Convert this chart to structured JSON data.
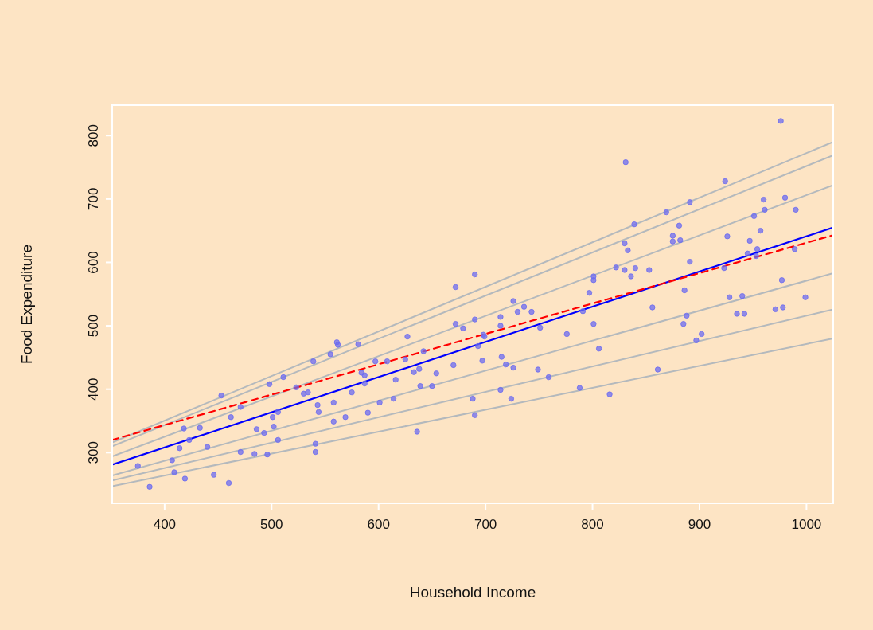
{
  "chart_data": {
    "type": "scatter",
    "xlabel": "Household Income",
    "ylabel": "Food Expenditure",
    "xlim": [
      351,
      1025
    ],
    "ylim": [
      220,
      848
    ],
    "xticks": [
      400,
      500,
      600,
      700,
      800,
      900,
      1000
    ],
    "yticks": [
      300,
      400,
      500,
      600,
      700,
      800
    ],
    "grid": false,
    "series": [
      {
        "color": "#6b6bf0",
        "marker": "circle",
        "x": [
          386,
          375,
          407,
          409,
          419,
          414,
          418,
          423,
          433,
          440,
          446,
          460,
          453,
          462,
          471,
          471,
          484,
          486,
          493,
          496,
          498,
          501,
          502,
          506,
          506,
          511,
          523,
          530,
          534,
          539,
          541,
          541,
          543,
          544,
          555,
          558,
          558,
          561,
          562,
          569,
          575,
          581,
          584,
          587,
          587,
          590,
          597,
          601,
          608,
          614,
          616,
          625,
          627,
          633,
          636,
          638,
          639,
          642,
          650,
          654,
          670,
          672,
          679,
          688,
          690,
          690,
          672,
          690,
          726,
          736,
          730,
          743,
          714,
          714,
          698,
          699,
          693,
          751,
          776,
          791,
          801,
          806,
          856,
          697,
          715,
          719,
          726,
          749,
          759,
          714,
          724,
          788,
          816,
          861,
          885,
          888,
          897,
          902,
          928,
          935,
          942,
          940,
          971,
          978,
          999,
          797,
          801,
          801,
          822,
          830,
          836,
          840,
          853,
          831,
          830,
          833,
          839,
          869,
          875,
          881,
          875,
          882,
          891,
          891,
          886,
          924,
          926,
          947,
          951,
          957,
          960,
          961,
          945,
          954,
          953,
          923,
          976,
          980,
          990,
          989,
          977
        ],
        "values": [
          246,
          279,
          288,
          269,
          259,
          307,
          338,
          320,
          339,
          309,
          265,
          252,
          390,
          356,
          372,
          301,
          298,
          337,
          331,
          297,
          408,
          356,
          341,
          320,
          364,
          419,
          403,
          393,
          395,
          444,
          314,
          301,
          375,
          364,
          455,
          379,
          349,
          474,
          470,
          356,
          395,
          471,
          426,
          422,
          409,
          363,
          444,
          379,
          444,
          385,
          415,
          447,
          483,
          427,
          333,
          432,
          405,
          460,
          405,
          425,
          438,
          503,
          496,
          385,
          359,
          510,
          561,
          581,
          539,
          530,
          522,
          522,
          514,
          500,
          486,
          483,
          468,
          497,
          487,
          523,
          503,
          464,
          529,
          445,
          451,
          439,
          434,
          431,
          419,
          399,
          385,
          402,
          392,
          431,
          503,
          516,
          477,
          487,
          545,
          519,
          519,
          547,
          526,
          529,
          545,
          552,
          578,
          572,
          592,
          588,
          578,
          591,
          588,
          758,
          630,
          619,
          660,
          679,
          642,
          658,
          633,
          635,
          695,
          601,
          556,
          728,
          641,
          634,
          673,
          650,
          699,
          683,
          614,
          621,
          610,
          591,
          823,
          702,
          683,
          621,
          572
        ]
      },
      {
        "type": "line",
        "color": "#b4b9bd",
        "line_style": "solid",
        "x": [
          351,
          1025
        ],
        "values": [
          316,
          790
        ]
      },
      {
        "type": "line",
        "color": "#b4b9bd",
        "line_style": "solid",
        "x": [
          351,
          1025
        ],
        "values": [
          310,
          769
        ]
      },
      {
        "type": "line",
        "color": "#b4b9bd",
        "line_style": "solid",
        "x": [
          351,
          1025
        ],
        "values": [
          294,
          722
        ]
      },
      {
        "type": "line",
        "color": "#b4b9bd",
        "line_style": "solid",
        "x": [
          351,
          1025
        ],
        "values": [
          264,
          583
        ]
      },
      {
        "type": "line",
        "color": "#b4b9bd",
        "line_style": "solid",
        "x": [
          351,
          1025
        ],
        "values": [
          256,
          526
        ]
      },
      {
        "type": "line",
        "color": "#b4b9bd",
        "line_style": "solid",
        "x": [
          351,
          1025
        ],
        "values": [
          247,
          480
        ]
      },
      {
        "type": "line",
        "color": "#0000ff",
        "line_style": "solid",
        "x": [
          351,
          1025
        ],
        "values": [
          281,
          655
        ]
      },
      {
        "type": "line",
        "color": "#ff0000",
        "line_style": "dashed",
        "x": [
          351,
          1025
        ],
        "values": [
          320,
          643
        ]
      }
    ]
  }
}
